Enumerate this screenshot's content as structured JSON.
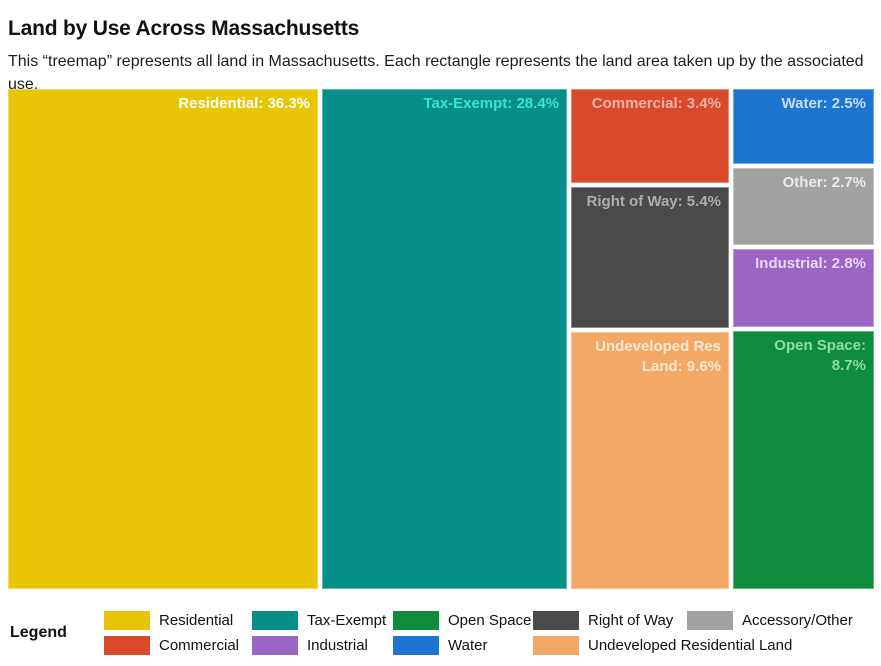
{
  "header": {
    "title": "Land by Use Across Massachusetts",
    "subtitle": "This “treemap” represents all land in Massachusetts. Each rectangle represents the land area taken up by the associated use."
  },
  "chart_data": {
    "type": "treemap",
    "title": "Land by Use Across Massachusetts",
    "subtitle": "This “treemap” represents all land in Massachusetts. Each rectangle represents the land area taken up by the associated use.",
    "unit": "percent of total land area",
    "items": [
      {
        "name": "Residential",
        "value": 36.3
      },
      {
        "name": "Tax-Exempt",
        "value": 28.4
      },
      {
        "name": "Undeveloped Res Land",
        "value": 9.6
      },
      {
        "name": "Open Space",
        "value": 8.7
      },
      {
        "name": "Right of Way",
        "value": 5.4
      },
      {
        "name": "Commercial",
        "value": 3.4
      },
      {
        "name": "Industrial",
        "value": 2.8
      },
      {
        "name": "Other",
        "value": 2.7
      },
      {
        "name": "Water",
        "value": 2.5
      }
    ],
    "legend_position": "bottom"
  },
  "treemap": {
    "rects": [
      {
        "name": "Residential",
        "label": "Residential: 36.3%",
        "value": 36.3,
        "color": "#E9C508",
        "label_color": "#FFFFFF"
      },
      {
        "name": "Tax-Exempt",
        "label": "Tax-Exempt: 28.4%",
        "value": 28.4,
        "color": "#088E89",
        "label_color": "#3EE0D0"
      },
      {
        "name": "Commercial",
        "label": "Commercial: 3.4%",
        "value": 3.4,
        "color": "#D94A2B",
        "label_color": "#EFB2A6"
      },
      {
        "name": "Right of Way",
        "label": "Right of Way: 5.4%",
        "value": 5.4,
        "color": "#4A4A4A",
        "label_color": "#ADADAD"
      },
      {
        "name": "Undeveloped Res Land",
        "label": "Undeveloped Res Land: 9.6%",
        "value": 9.6,
        "color": "#F3A866",
        "label_color": "#FAE8D0"
      },
      {
        "name": "Water",
        "label": "Water: 2.5%",
        "value": 2.5,
        "color": "#1E74D1",
        "label_color": "#C6DEF7"
      },
      {
        "name": "Other",
        "label": "Other: 2.7%",
        "value": 2.7,
        "color": "#A2A2A2",
        "label_color": "#E9E9E9"
      },
      {
        "name": "Industrial",
        "label": "Industrial: 2.8%",
        "value": 2.8,
        "color": "#9C64C4",
        "label_color": "#EBD6FA"
      },
      {
        "name": "Open Space",
        "label": "Open Space: 8.7%",
        "value": 8.7,
        "color": "#0E8C3C",
        "label_color": "#90DBA0"
      }
    ]
  },
  "legend": {
    "heading": "Legend",
    "items": [
      {
        "label": "Residential",
        "color": "#E9C508"
      },
      {
        "label": "Tax-Exempt",
        "color": "#088E89"
      },
      {
        "label": "Open Space",
        "color": "#0E8C3C"
      },
      {
        "label": "Right of Way",
        "color": "#4A4A4A"
      },
      {
        "label": "Accessory/Other",
        "color": "#A2A2A2"
      },
      {
        "label": "Commercial",
        "color": "#D94A2B"
      },
      {
        "label": "Industrial",
        "color": "#9C64C4"
      },
      {
        "label": "Water",
        "color": "#1E74D1"
      },
      {
        "label": "Undeveloped Residential Land",
        "color": "#F3A866"
      }
    ]
  }
}
